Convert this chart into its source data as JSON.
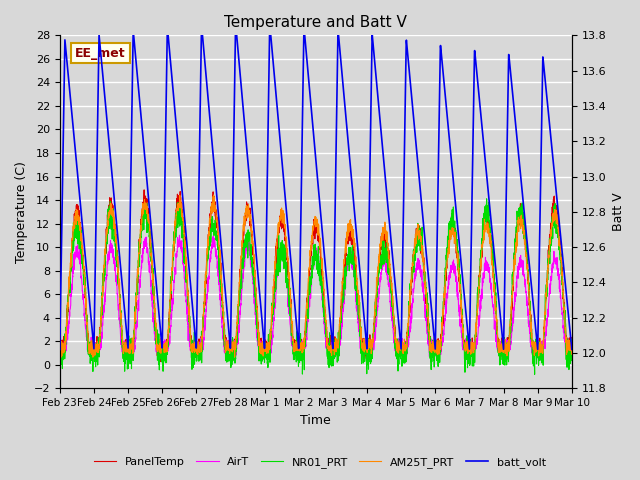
{
  "title": "Temperature and Batt V",
  "xlabel": "Time",
  "ylabel_left": "Temperature (C)",
  "ylabel_right": "Batt V",
  "annotation": "EE_met",
  "xlim": [
    0,
    15.0
  ],
  "ylim_left": [
    -2,
    28
  ],
  "ylim_right": [
    11.8,
    13.8
  ],
  "xtick_labels": [
    "Feb 23",
    "Feb 24",
    "Feb 25",
    "Feb 26",
    "Feb 27",
    "Feb 28",
    "Mar 1",
    "Mar 2",
    "Mar 3",
    "Mar 4",
    "Mar 5",
    "Mar 6",
    "Mar 7",
    "Mar 8",
    "Mar 9",
    "Mar 10"
  ],
  "xtick_positions": [
    0,
    1,
    2,
    3,
    4,
    5,
    6,
    7,
    8,
    9,
    10,
    11,
    12,
    13,
    14,
    15
  ],
  "yticks_left": [
    -2,
    0,
    2,
    4,
    6,
    8,
    10,
    12,
    14,
    16,
    18,
    20,
    22,
    24,
    26,
    28
  ],
  "yticks_right": [
    11.8,
    12.0,
    12.2,
    12.4,
    12.6,
    12.8,
    13.0,
    13.2,
    13.4,
    13.6,
    13.8
  ],
  "bg_color": "#d8d8d8",
  "plot_bg": "#d8d8d8",
  "grid_color": "#ffffff",
  "legend": [
    {
      "label": "PanelTemp",
      "color": "#dd0000"
    },
    {
      "label": "AirT",
      "color": "#ff00ff"
    },
    {
      "label": "NR01_PRT",
      "color": "#00dd00"
    },
    {
      "label": "AM25T_PRT",
      "color": "#ff8800"
    },
    {
      "label": "batt_volt",
      "color": "#0000ee"
    }
  ],
  "n_days": 15.0,
  "n_points": 3000
}
